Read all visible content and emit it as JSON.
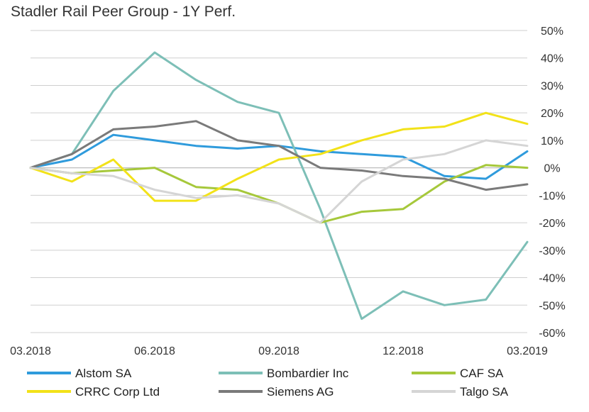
{
  "chart_data": {
    "type": "line",
    "title": "Stadler Rail Peer Group - 1Y Perf.",
    "xlabel": "",
    "ylabel": "",
    "y_axis_side": "right",
    "ylim": [
      -60,
      50
    ],
    "y_ticks": [
      50,
      40,
      30,
      20,
      10,
      0,
      -10,
      -20,
      -30,
      -40,
      -50,
      -60
    ],
    "y_tick_labels": [
      "50%",
      "40%",
      "30%",
      "20%",
      "10%",
      "0%",
      "-10%",
      "-20%",
      "-30%",
      "-40%",
      "-50%",
      "-60%"
    ],
    "x_ticks": [
      "03.2018",
      "06.2018",
      "09.2018",
      "12.2018",
      "03.2019"
    ],
    "x": [
      "03.2018",
      "04.2018",
      "05.2018",
      "06.2018",
      "07.2018",
      "08.2018",
      "09.2018",
      "10.2018",
      "11.2018",
      "12.2018",
      "01.2019",
      "02.2019",
      "03.2019"
    ],
    "grid": true,
    "legend_position": "bottom",
    "series": [
      {
        "name": "Alstom SA",
        "color": "#2f9bdc",
        "values": [
          0,
          3,
          12,
          10,
          8,
          7,
          8,
          6,
          5,
          4,
          -3,
          -4,
          6
        ]
      },
      {
        "name": "Bombardier Inc",
        "color": "#7dbfb7",
        "values": [
          0,
          5,
          28,
          42,
          32,
          24,
          20,
          -15,
          -55,
          -45,
          -50,
          -48,
          -27
        ]
      },
      {
        "name": "CAF SA",
        "color": "#a6c83b",
        "values": [
          0,
          -2,
          -1,
          0,
          -7,
          -8,
          -13,
          -20,
          -16,
          -15,
          -5,
          1,
          0
        ]
      },
      {
        "name": "CRRC Corp Ltd",
        "color": "#f2e219",
        "values": [
          0,
          -5,
          3,
          -12,
          -12,
          -4,
          3,
          5,
          10,
          14,
          15,
          20,
          16
        ]
      },
      {
        "name": "Siemens AG",
        "color": "#7a7a7a",
        "values": [
          0,
          5,
          14,
          15,
          17,
          10,
          8,
          0,
          -1,
          -3,
          -4,
          -8,
          -6
        ]
      },
      {
        "name": "Talgo SA",
        "color": "#d5d5d5",
        "values": [
          0,
          -2,
          -3,
          -8,
          -11,
          -10,
          -13,
          -20,
          -5,
          3,
          5,
          10,
          8
        ]
      }
    ]
  }
}
